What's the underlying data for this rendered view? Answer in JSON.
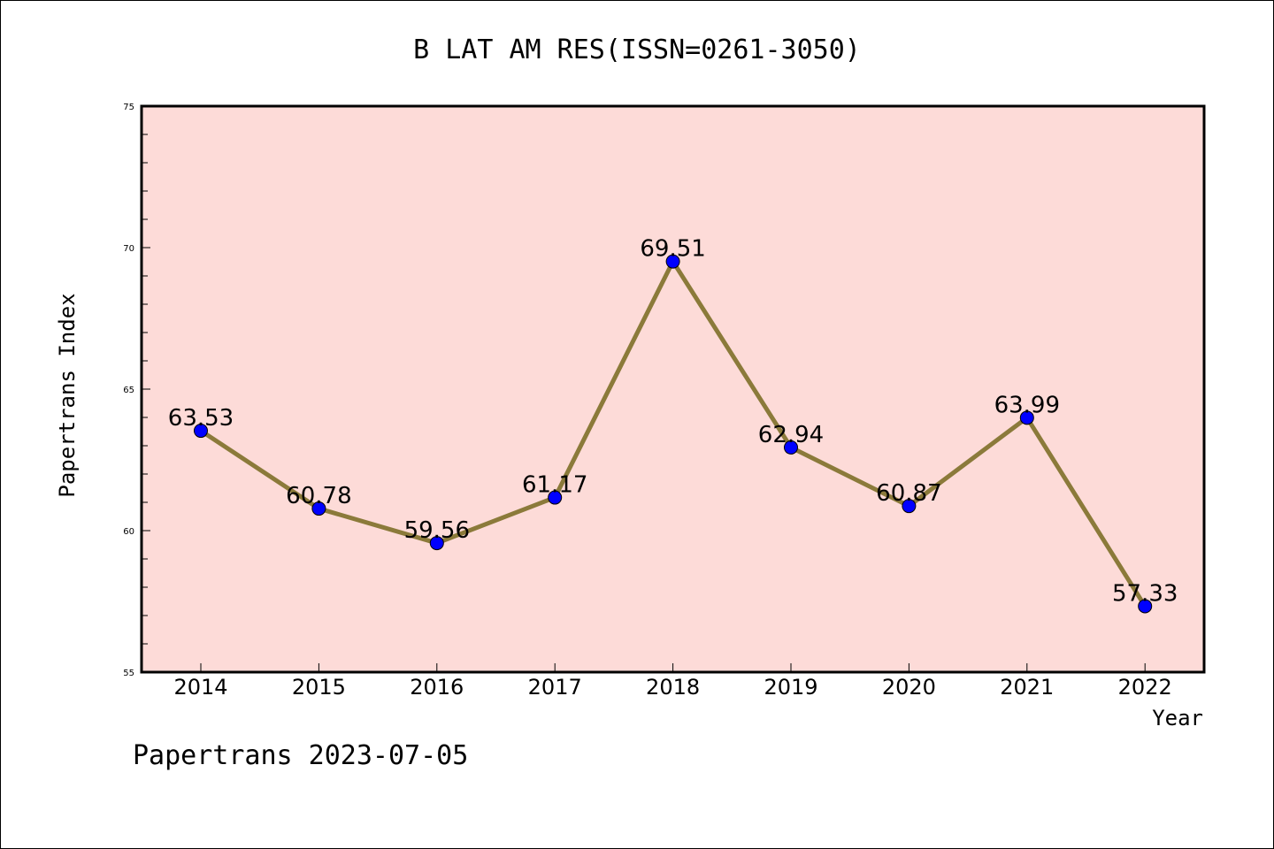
{
  "chart_data": {
    "type": "line",
    "title": "B LAT AM RES(ISSN=0261-3050)",
    "xlabel": "Year",
    "ylabel": "Papertrans Index",
    "categories": [
      "2014",
      "2015",
      "2016",
      "2017",
      "2018",
      "2019",
      "2020",
      "2021",
      "2022"
    ],
    "values": [
      63.53,
      60.78,
      59.56,
      61.17,
      69.51,
      62.94,
      60.87,
      63.99,
      57.33
    ],
    "value_labels": [
      "63.53",
      "60.78",
      "59.56",
      "61.17",
      "69.51",
      "62.94",
      "60.87",
      "63.99",
      "57.33"
    ],
    "ylim": [
      55,
      75
    ],
    "yticks": [
      55,
      60,
      65,
      70,
      75
    ],
    "ytick_labels": [
      "55",
      "60",
      "65",
      "70",
      "75"
    ],
    "y_minor_step": 1,
    "grid": false,
    "legend": "none",
    "line_color": "#8b7a3a",
    "marker_color": "#0000ff",
    "plot_background": "#fddbd8"
  },
  "footer": {
    "text": "Papertrans 2023-07-05"
  }
}
